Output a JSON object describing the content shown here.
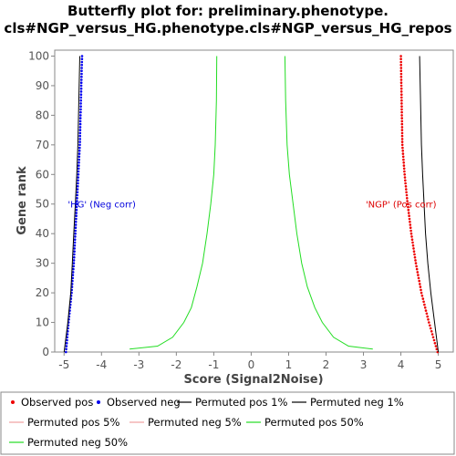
{
  "chart_data": {
    "type": "scatter",
    "title_lines": [
      "Butterfly plot for: preliminary.phenotype.",
      "cls#NGP_versus_HG.phenotype.cls#NGP_versus_HG_repos"
    ],
    "xlabel": "Score (Signal2Noise)",
    "ylabel": "Gene rank",
    "xlim": [
      -5.25,
      5.4
    ],
    "ylim": [
      0,
      102
    ],
    "x_ticks": [
      -5,
      -4,
      -3,
      -2,
      -1,
      0,
      1,
      2,
      3,
      4,
      5
    ],
    "y_ticks": [
      0,
      10,
      20,
      30,
      40,
      50,
      60,
      70,
      80,
      90,
      100
    ],
    "grid": false,
    "annotations": [
      {
        "text": "'HG' (Neg corr)",
        "x": -4.9,
        "y": 50,
        "color": "#0000dd"
      },
      {
        "text": "'NGP' (Pos corr)",
        "x": 4.95,
        "y": 50,
        "color": "#dd0000"
      }
    ],
    "series": [
      {
        "name": "Observed pos",
        "kind": "points",
        "color": "#ee0000",
        "x": [
          4.98,
          4.75,
          4.55,
          4.4,
          4.28,
          4.18,
          4.1,
          4.04,
          4.0
        ],
        "y": [
          0,
          10,
          20,
          30,
          40,
          50,
          60,
          70,
          100
        ]
      },
      {
        "name": "Observed neg",
        "kind": "points",
        "color": "#0000ee",
        "x": [
          -4.95,
          -4.88,
          -4.8,
          -4.74,
          -4.7,
          -4.66,
          -4.62,
          -4.58,
          -4.52
        ],
        "y": [
          0,
          10,
          20,
          30,
          40,
          50,
          60,
          70,
          100
        ]
      },
      {
        "name": "Permuted pos 1%",
        "kind": "line",
        "color": "#000000",
        "x": [
          5.0,
          4.9,
          4.8,
          4.72,
          4.66,
          4.62,
          4.58,
          4.55,
          4.5
        ],
        "y": [
          0,
          10,
          20,
          30,
          40,
          50,
          60,
          70,
          100
        ]
      },
      {
        "name": "Permuted neg 1%",
        "kind": "line",
        "color": "#000000",
        "x": [
          -5.0,
          -4.9,
          -4.82,
          -4.78,
          -4.74,
          -4.7,
          -4.66,
          -4.63,
          -4.58
        ],
        "y": [
          0,
          10,
          20,
          30,
          40,
          50,
          60,
          70,
          100
        ]
      },
      {
        "name": "Permuted pos 5%",
        "kind": "line",
        "color": "#f0a0a0",
        "x": [],
        "y": []
      },
      {
        "name": "Permuted neg 5%",
        "kind": "line",
        "color": "#f0a0a0",
        "x": [],
        "y": []
      },
      {
        "name": "Permuted pos 50%",
        "kind": "line",
        "color": "#22dd22",
        "x": [
          3.25,
          2.6,
          2.2,
          1.9,
          1.7,
          1.5,
          1.35,
          1.22,
          1.12,
          1.02,
          0.96,
          0.92,
          0.9
        ],
        "y": [
          1,
          2,
          5,
          10,
          15,
          22,
          30,
          40,
          50,
          60,
          70,
          85,
          100
        ]
      },
      {
        "name": "Permuted neg 50%",
        "kind": "line",
        "color": "#22dd22",
        "x": [
          -3.25,
          -2.5,
          -2.1,
          -1.8,
          -1.6,
          -1.45,
          -1.3,
          -1.18,
          -1.08,
          -1.0,
          -0.96,
          -0.93,
          -0.92
        ],
        "y": [
          1,
          2,
          5,
          10,
          15,
          22,
          30,
          40,
          50,
          60,
          70,
          85,
          100
        ]
      }
    ],
    "legend_position": "bottom"
  }
}
